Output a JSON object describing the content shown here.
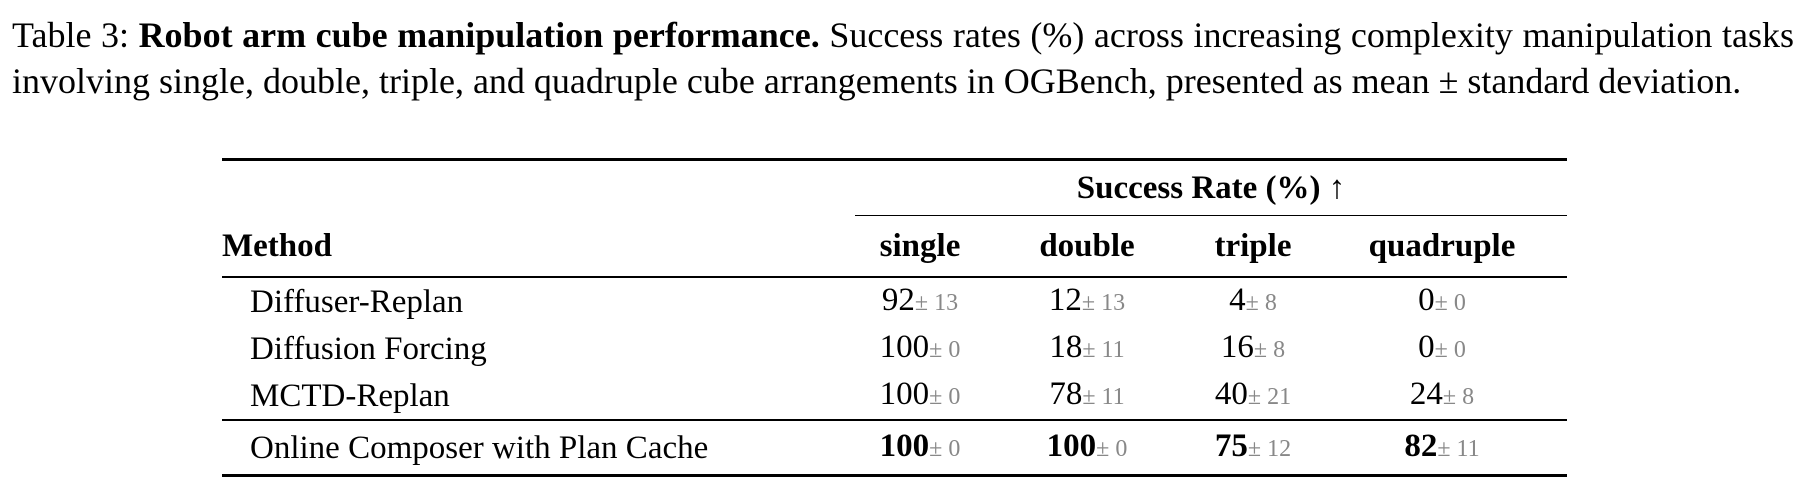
{
  "caption": {
    "label": "Table 3:",
    "title": "Robot arm cube manipulation performance.",
    "text": "Success rates (%) across increasing complexity manipulation tasks involving single, double, triple, and quadruple cube arrangements in OGBench, presented as mean ± standard deviation."
  },
  "table": {
    "group_header": "Success Rate (%) ↑",
    "columns": [
      "Method",
      "single",
      "double",
      "triple",
      "quadruple"
    ],
    "rows": [
      {
        "method": "Diffuser-Replan",
        "cells": [
          {
            "mean": "92",
            "sd": "± 13"
          },
          {
            "mean": "12",
            "sd": "± 13"
          },
          {
            "mean": "4",
            "sd": "± 8"
          },
          {
            "mean": "0",
            "sd": "± 0"
          }
        ]
      },
      {
        "method": "Diffusion Forcing",
        "cells": [
          {
            "mean": "100",
            "sd": "± 0"
          },
          {
            "mean": "18",
            "sd": "± 11"
          },
          {
            "mean": "16",
            "sd": "± 8"
          },
          {
            "mean": "0",
            "sd": "± 0"
          }
        ]
      },
      {
        "method": "MCTD-Replan",
        "cells": [
          {
            "mean": "100",
            "sd": "± 0"
          },
          {
            "mean": "78",
            "sd": "± 11"
          },
          {
            "mean": "40",
            "sd": "± 21"
          },
          {
            "mean": "24",
            "sd": "± 8"
          }
        ]
      },
      {
        "method": "Online Composer with Plan Cache",
        "bold": true,
        "cells": [
          {
            "mean": "100",
            "sd": "± 0"
          },
          {
            "mean": "100",
            "sd": "± 0"
          },
          {
            "mean": "75",
            "sd": "± 12"
          },
          {
            "mean": "82",
            "sd": "± 11"
          }
        ]
      }
    ]
  }
}
